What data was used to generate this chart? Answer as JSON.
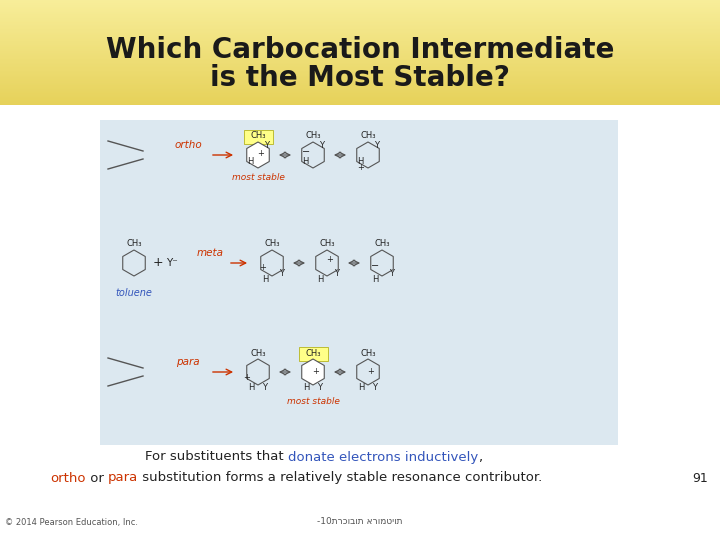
{
  "title_line1": "Which Carbocation Intermediate",
  "title_line2": "is the Most Stable?",
  "title_fontsize": 20,
  "title_color": "#1a1a1a",
  "bg_top_color": "#f0e080",
  "bg_bottom_color": "#e8d060",
  "content_bg": "#dce8f0",
  "ortho_label_color": "#cc3300",
  "meta_label_color": "#cc3300",
  "para_label_color": "#cc3300",
  "toluene_label_color": "#3355bb",
  "most_stable_color": "#cc3300",
  "highlight_yellow": "#ffff88",
  "ring_color": "#555555",
  "text_color": "#222222",
  "arrow_color": "#555555",
  "red_arrow_color": "#cc3300",
  "page_number": "91",
  "copyright_text": "© 2014 Pearson Education, Inc.",
  "hebrew_text": "-10תרכובות ארומטיות"
}
